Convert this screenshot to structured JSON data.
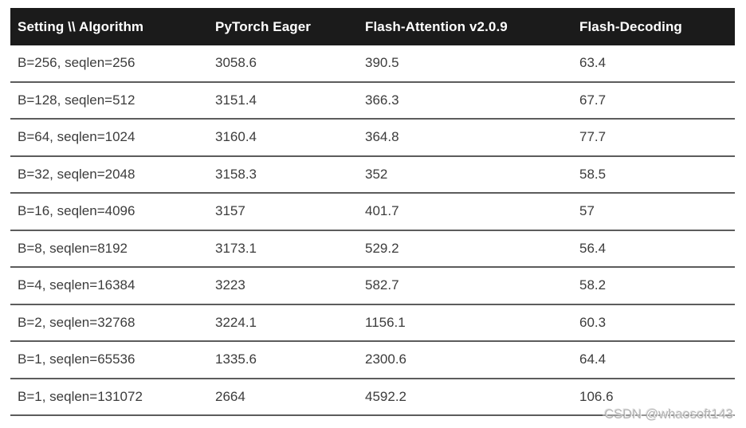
{
  "table": {
    "columns": [
      "Setting \\\\ Algorithm",
      "PyTorch Eager",
      "Flash-Attention v2.0.9",
      "Flash-Decoding"
    ],
    "rows": [
      [
        "B=256, seqlen=256",
        "3058.6",
        "390.5",
        "63.4"
      ],
      [
        "B=128, seqlen=512",
        "3151.4",
        "366.3",
        "67.7"
      ],
      [
        "B=64, seqlen=1024",
        "3160.4",
        "364.8",
        "77.7"
      ],
      [
        "B=32, seqlen=2048",
        "3158.3",
        "352",
        "58.5"
      ],
      [
        "B=16, seqlen=4096",
        "3157",
        "401.7",
        "57"
      ],
      [
        "B=8, seqlen=8192",
        "3173.1",
        "529.2",
        "56.4"
      ],
      [
        "B=4, seqlen=16384",
        "3223",
        "582.7",
        "58.2"
      ],
      [
        "B=2, seqlen=32768",
        "3224.1",
        "1156.1",
        "60.3"
      ],
      [
        "B=1, seqlen=65536",
        "1335.6",
        "2300.6",
        "64.4"
      ],
      [
        "B=1, seqlen=131072",
        "2664",
        "4592.2",
        "106.6"
      ]
    ]
  },
  "chart_data": {
    "type": "table",
    "title": "",
    "row_header_label": "Setting \\\\ Algorithm",
    "categories": [
      "B=256, seqlen=256",
      "B=128, seqlen=512",
      "B=64, seqlen=1024",
      "B=32, seqlen=2048",
      "B=16, seqlen=4096",
      "B=8, seqlen=8192",
      "B=4, seqlen=16384",
      "B=2, seqlen=32768",
      "B=1, seqlen=65536",
      "B=1, seqlen=131072"
    ],
    "series": [
      {
        "name": "PyTorch Eager",
        "values": [
          3058.6,
          3151.4,
          3160.4,
          3158.3,
          3157,
          3173.1,
          3223,
          3224.1,
          1335.6,
          2664
        ]
      },
      {
        "name": "Flash-Attention v2.0.9",
        "values": [
          390.5,
          366.3,
          364.8,
          352,
          401.7,
          529.2,
          582.7,
          1156.1,
          2300.6,
          4592.2
        ]
      },
      {
        "name": "Flash-Decoding",
        "values": [
          63.4,
          67.7,
          77.7,
          58.5,
          57,
          56.4,
          58.2,
          60.3,
          64.4,
          106.6
        ]
      }
    ]
  },
  "watermark": "CSDN @whaosoft143",
  "colors": {
    "header_bg": "#1b1b1b",
    "header_text": "#ffffff",
    "body_text": "#3c3c3c",
    "row_separator": "#5c5c5c",
    "watermark_text": "#b5b5b5",
    "page_bg": "#ffffff"
  }
}
